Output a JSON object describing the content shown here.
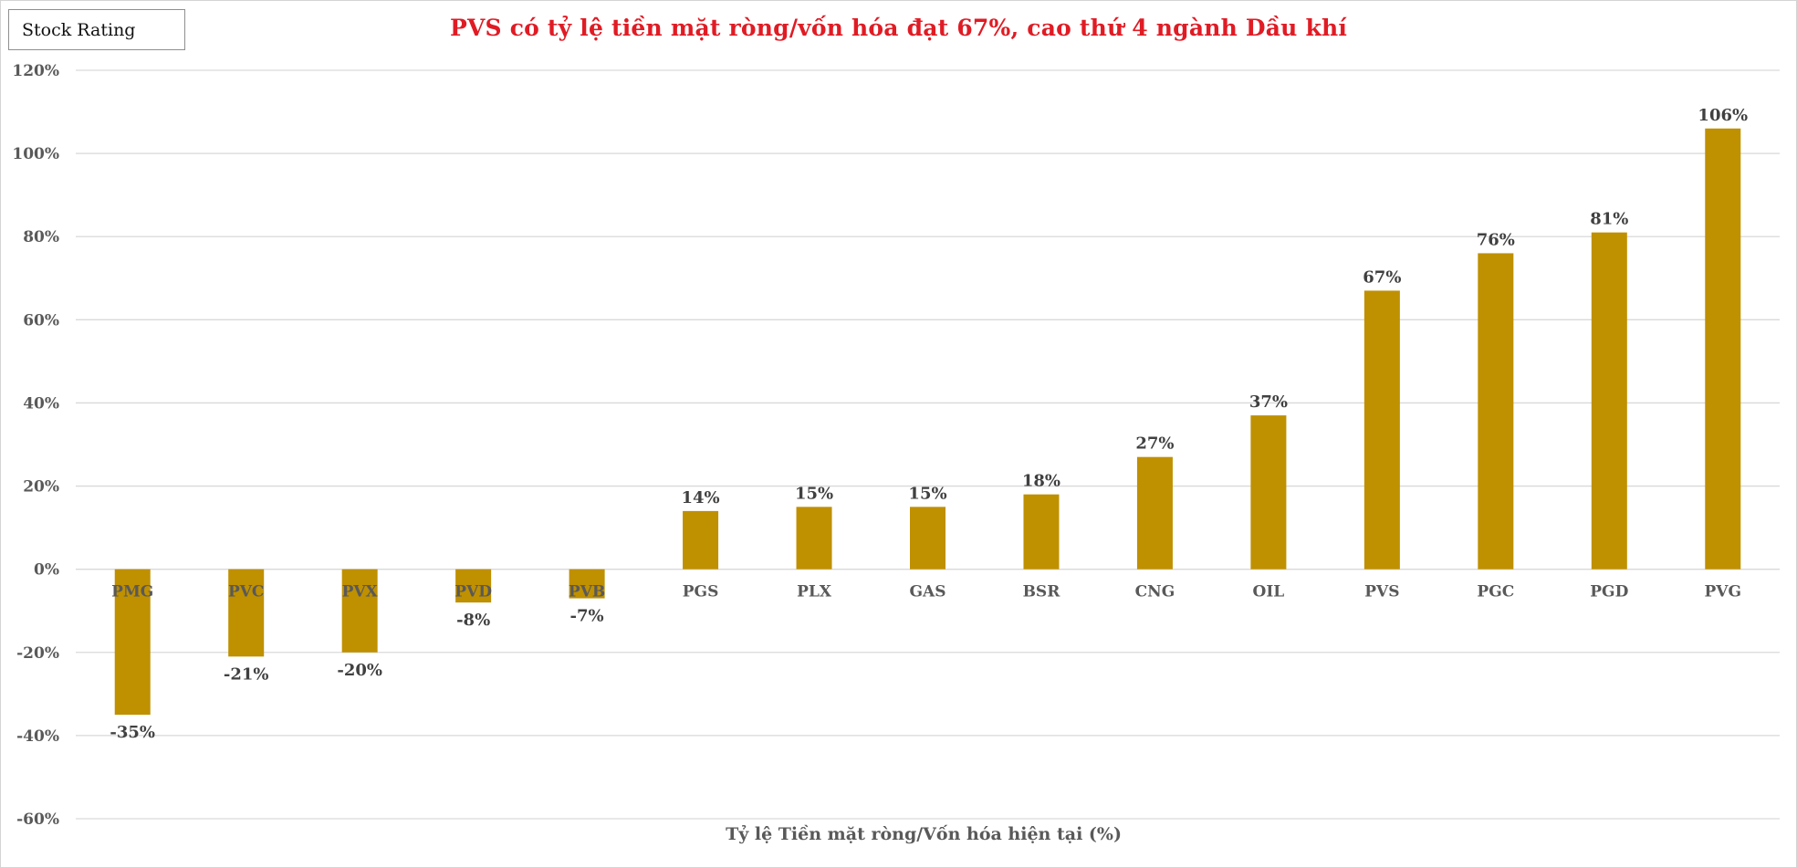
{
  "brand": {
    "label": "Stock Rating"
  },
  "colors": {
    "bar": "#bf9000",
    "title": "#e01b24",
    "grid": "#d9d9d9",
    "axis_text": "#595959",
    "data_label": "#404040"
  },
  "chart_data": {
    "type": "bar",
    "title": "PVS có tỷ lệ tiền mặt ròng/vốn hóa đạt 67%, cao thứ 4 ngành Dầu khí",
    "xlabel": "Tỷ lệ Tiền mặt ròng/Vốn hóa hiện tại (%)",
    "ylabel": "",
    "ylim": [
      -60,
      120
    ],
    "yticks": [
      -60,
      -40,
      -20,
      0,
      20,
      40,
      60,
      80,
      100,
      120
    ],
    "ytick_labels": [
      "-60%",
      "-40%",
      "-20%",
      "0%",
      "20%",
      "40%",
      "60%",
      "80%",
      "100%",
      "120%"
    ],
    "grid": true,
    "legend": "none",
    "categories": [
      "PMG",
      "PVC",
      "PVX",
      "PVD",
      "PVB",
      "PGS",
      "PLX",
      "GAS",
      "BSR",
      "CNG",
      "OIL",
      "PVS",
      "PGC",
      "PGD",
      "PVG"
    ],
    "values": [
      -35,
      -21,
      -20,
      -8,
      -7,
      14,
      15,
      15,
      18,
      27,
      37,
      67,
      76,
      81,
      106
    ],
    "value_labels": [
      "-35%",
      "-21%",
      "-20%",
      "-8%",
      "-7%",
      "14%",
      "15%",
      "15%",
      "18%",
      "27%",
      "37%",
      "67%",
      "76%",
      "81%",
      "106%"
    ]
  }
}
